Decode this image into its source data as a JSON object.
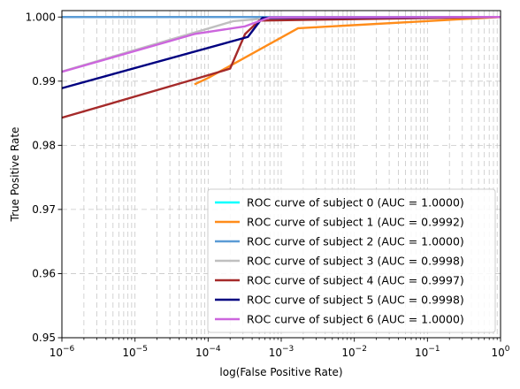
{
  "chart_data": {
    "type": "line",
    "title": "",
    "xlabel": "log(False Positive Rate)",
    "ylabel": "True Positive Rate",
    "xscale": "log",
    "xlim": [
      1e-06,
      1
    ],
    "ylim": [
      0.95,
      1.001
    ],
    "grid": "dashed",
    "legend_position": "lower-right",
    "x_ticks": [
      {
        "value": 1e-06,
        "base": "10",
        "exp": "−6"
      },
      {
        "value": 1e-05,
        "base": "10",
        "exp": "−5"
      },
      {
        "value": 0.0001,
        "base": "10",
        "exp": "−4"
      },
      {
        "value": 0.001,
        "base": "10",
        "exp": "−3"
      },
      {
        "value": 0.01,
        "base": "10",
        "exp": "−2"
      },
      {
        "value": 0.1,
        "base": "10",
        "exp": "−1"
      },
      {
        "value": 1,
        "base": "10",
        "exp": "0"
      }
    ],
    "y_ticks": [
      {
        "value": 0.95,
        "label": "0.95"
      },
      {
        "value": 0.96,
        "label": "0.96"
      },
      {
        "value": 0.97,
        "label": "0.97"
      },
      {
        "value": 0.98,
        "label": "0.98"
      },
      {
        "value": 0.99,
        "label": "0.99"
      },
      {
        "value": 1.0,
        "label": "1.000"
      }
    ],
    "series": [
      {
        "name": "ROC curve of subject 0 (AUC = 1.0000)",
        "color": "#00ffff",
        "x": [
          1e-06,
          1
        ],
        "y": [
          1.0,
          1.0
        ]
      },
      {
        "name": "ROC curve of subject 1 (AUC = 0.9992)",
        "color": "#ff8c1a",
        "x": [
          6.5e-05,
          0.0001,
          0.0017,
          1
        ],
        "y": [
          0.9895,
          0.9905,
          0.99825,
          1.0
        ]
      },
      {
        "name": "ROC curve of subject 2 (AUC = 1.0000)",
        "color": "#5b9bd5",
        "x": [
          1e-06,
          1
        ],
        "y": [
          1.0,
          1.0
        ]
      },
      {
        "name": "ROC curve of subject 3 (AUC = 0.9998)",
        "color": "#bfbfbf",
        "x": [
          1e-06,
          0.00022,
          0.0005,
          1
        ],
        "y": [
          0.9915,
          0.99935,
          0.9997,
          1.0
        ]
      },
      {
        "name": "ROC curve of subject 4 (AUC = 0.9997)",
        "color": "#a52a2a",
        "x": [
          1e-06,
          6.5e-05,
          0.0002,
          0.00032,
          0.0005,
          1
        ],
        "y": [
          0.9843,
          0.9903,
          0.99195,
          0.99735,
          0.99945,
          1.0
        ]
      },
      {
        "name": "ROC curve of subject 5 (AUC = 0.9998)",
        "color": "#000080",
        "x": [
          1e-06,
          0.00035,
          0.00055,
          1
        ],
        "y": [
          0.9889,
          0.9969,
          0.99985,
          1.0
        ]
      },
      {
        "name": "ROC curve of subject 6 (AUC = 1.0000)",
        "color": "#cc66dd",
        "x": [
          1e-06,
          6.5e-05,
          0.00032,
          0.0007,
          1
        ],
        "y": [
          0.99145,
          0.99735,
          0.99855,
          0.99995,
          1.0
        ]
      }
    ]
  }
}
